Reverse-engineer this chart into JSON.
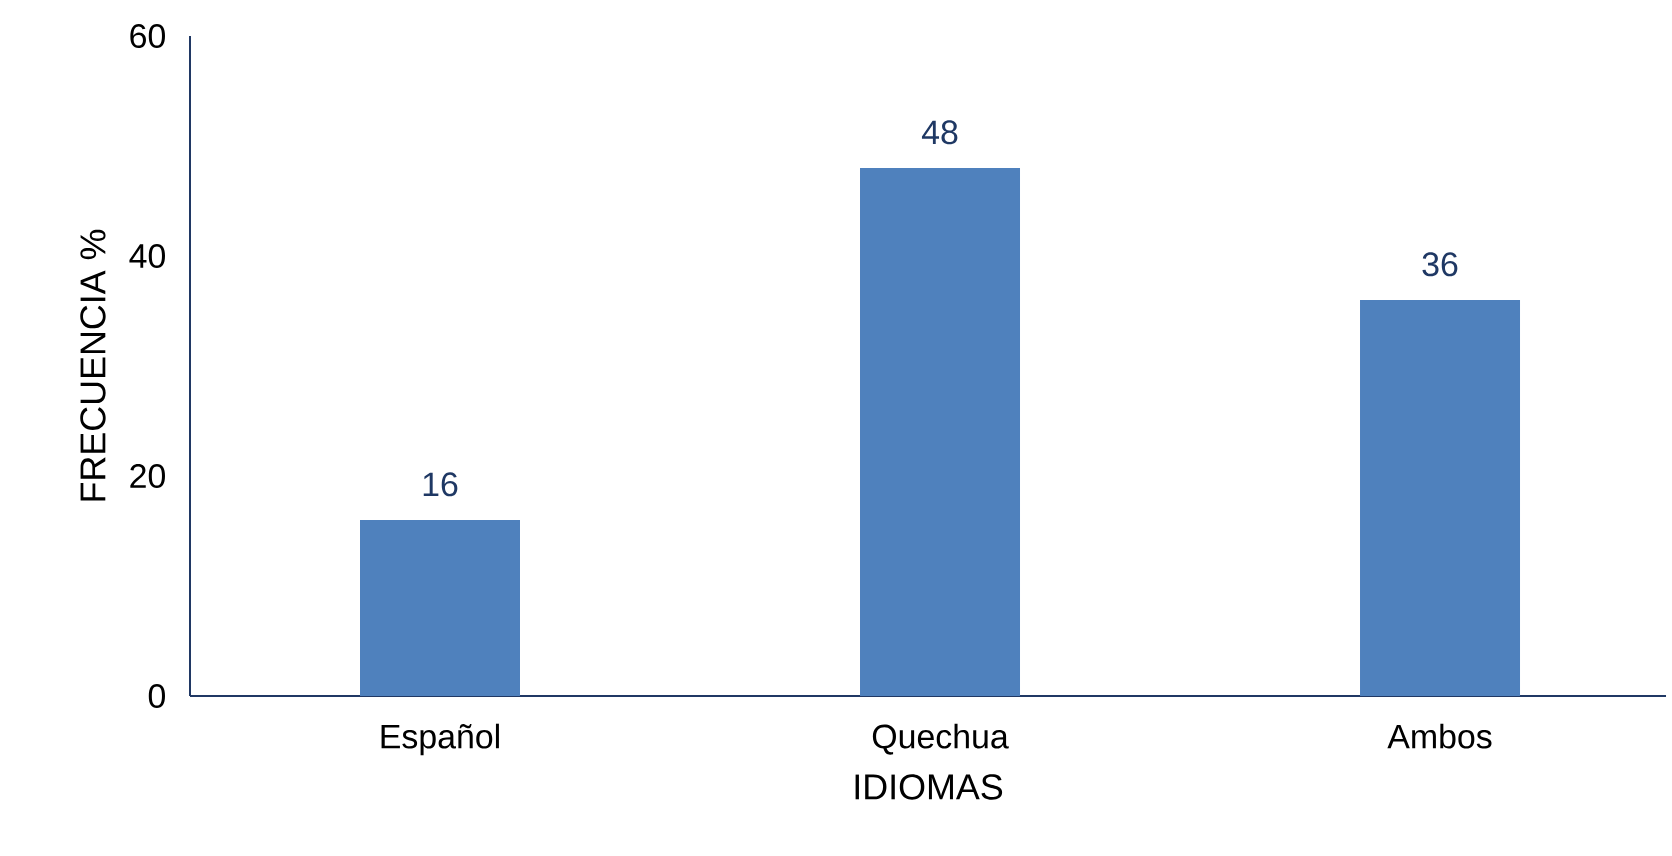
{
  "chart_data": {
    "type": "bar",
    "xlabel": "IDIOMAS",
    "ylabel": "FRECUENCIA %",
    "categories": [
      "Español",
      "Quechua",
      "Ambos"
    ],
    "values": [
      16,
      48,
      36
    ],
    "color": "#4f81bd",
    "ylim": [
      0,
      60
    ],
    "yticks": [
      0,
      20,
      40,
      60
    ],
    "data_labels": true
  }
}
